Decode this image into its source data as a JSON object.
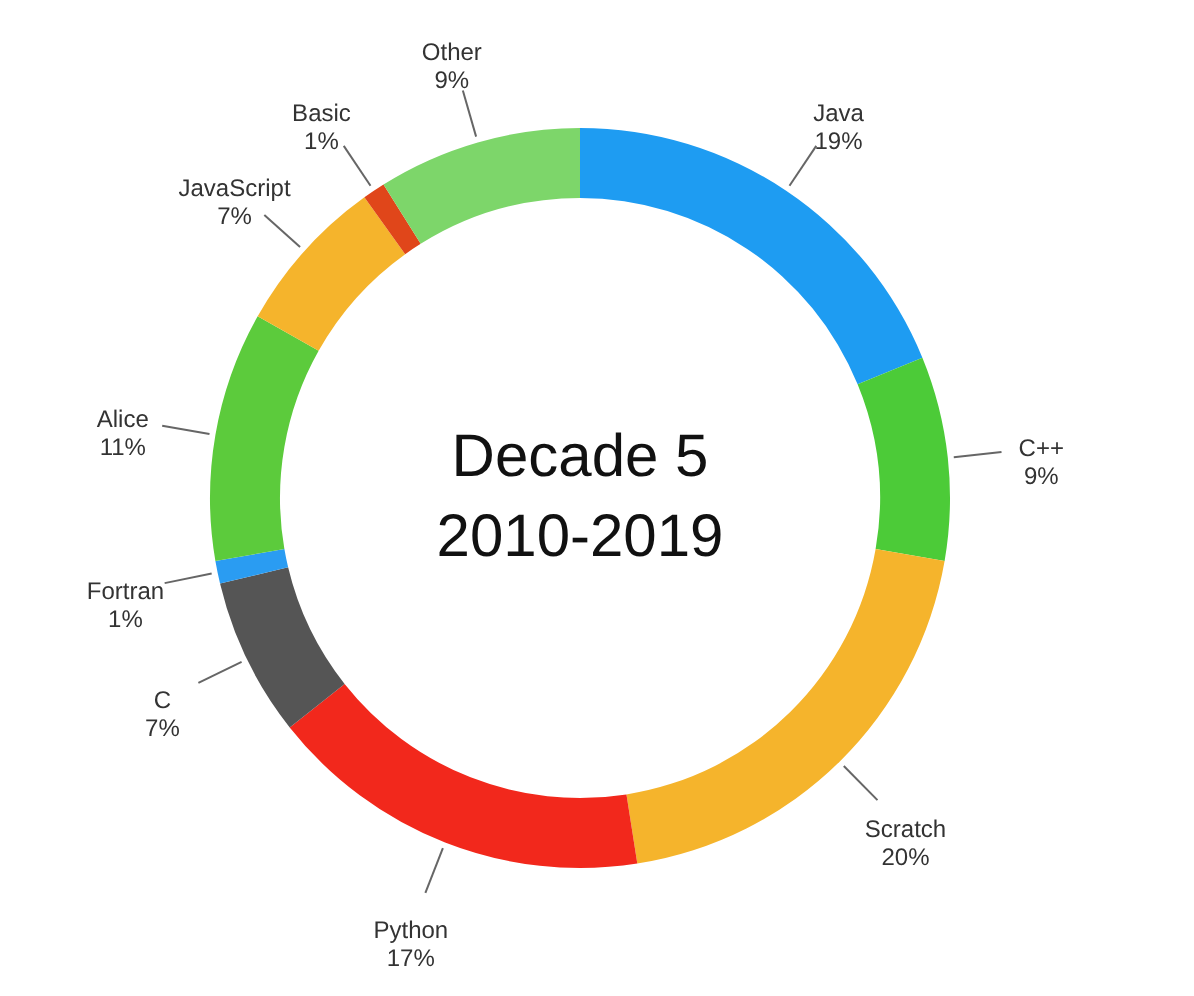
{
  "chart_data": {
    "type": "donut",
    "title": "Decade 5",
    "subtitle": "2010-2019",
    "categories": [
      "Java",
      "C++",
      "Scratch",
      "Python",
      "C",
      "Fortran",
      "Alice",
      "JavaScript",
      "Basic",
      "Other"
    ],
    "values": [
      19,
      9,
      20,
      17,
      7,
      1,
      11,
      7,
      1,
      9
    ],
    "value_labels": [
      "19%",
      "9%",
      "20%",
      "17%",
      "7%",
      "1%",
      "11%",
      "7%",
      "1%",
      "9%"
    ],
    "colors": [
      "#1e9cf2",
      "#4ccb38",
      "#f5b42c",
      "#f2281c",
      "#555555",
      "#2a9cf2",
      "#5ccb3c",
      "#f5b42c",
      "#e0461a",
      "#7dd66a"
    ]
  }
}
